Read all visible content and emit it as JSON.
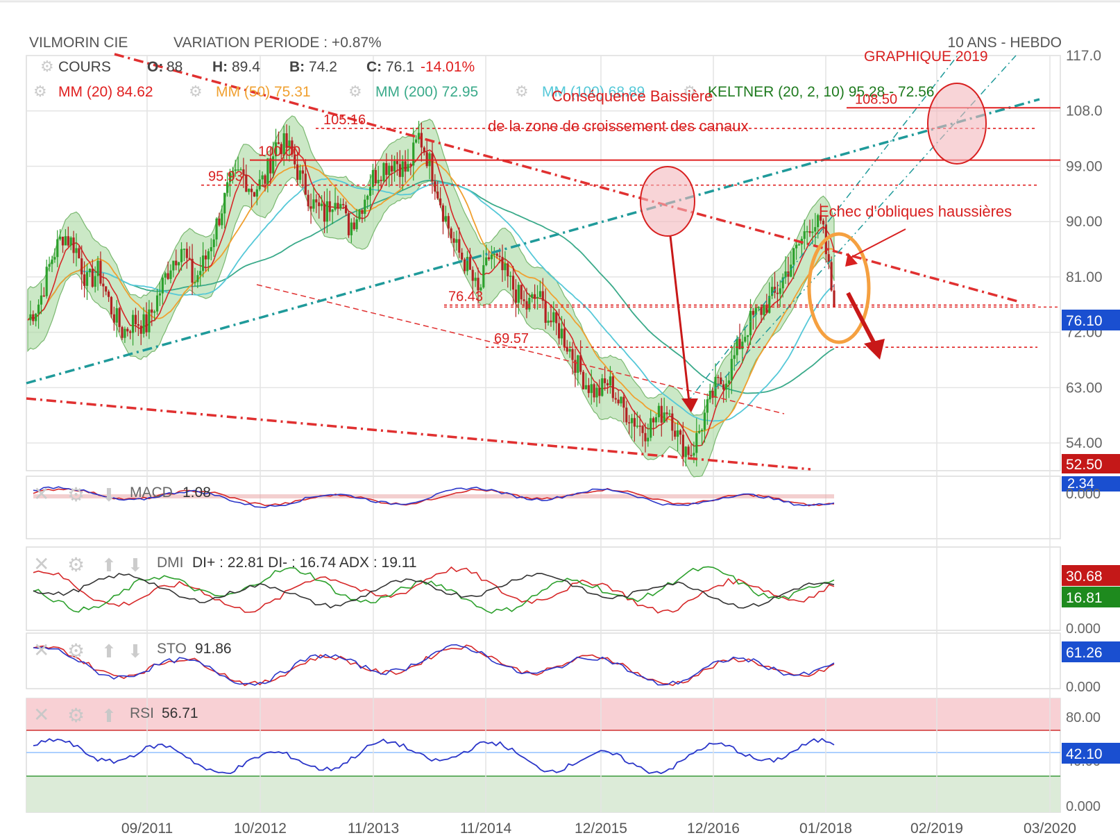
{
  "header": {
    "name": "VILMORIN CIE",
    "variation": "VARIATION PERIODE : +0.87%",
    "period": "10 ANS - HEBDO"
  },
  "legend": {
    "cours_label": "COURS",
    "o_label": "O:",
    "o_value": "88",
    "h_label": "H:",
    "h_value": "89.4",
    "b_label": "B:",
    "b_value": "74.2",
    "c_label": "C:",
    "c_value": "76.1",
    "change": "-14.01%",
    "mm20": "MM (20)  84.62",
    "mm50": "MM (50)  75.31",
    "mm200": "MM (200)  72.95",
    "mm100": "MM (100)  68.89",
    "keltner": "KELTNER (20, 2, 10)  95.28 - 72.56"
  },
  "annotations": {
    "graphique": "GRAPHIQUE 2019",
    "consequence": "Conséquence Baissière",
    "zone": "de la zone de croissement des canaux",
    "echec": "Echec d'obliques haussières"
  },
  "colors": {
    "up": "#2ca02c",
    "down": "#b22222",
    "mm20": "#d62728",
    "mm50": "#f0a030",
    "mm200": "#3aaa8a",
    "mm100": "#55c8d8",
    "keltner_fill": "#a8d8a0",
    "trend_red": "#e03030",
    "trend_teal": "#1f9a9a",
    "orange": "#f5a040",
    "rsi_line": "#2a35c8",
    "last_badge": "#1a4fd0"
  },
  "chart_data": [
    {
      "type": "candlestick",
      "title": "VILMORIN CIE",
      "ylim": [
        49.5,
        117.0
      ],
      "y_ticks": [
        "117.0",
        "108.0",
        "99.00",
        "90.00",
        "81.00",
        "72.00",
        "63.00",
        "54.00"
      ],
      "x_ticks": [
        "09/2011",
        "10/2012",
        "11/2013",
        "11/2014",
        "12/2015",
        "12/2016",
        "01/2018",
        "02/2019",
        "03/2020"
      ],
      "last_price_badge": "76.10",
      "low_badge": "52.50",
      "levels": [
        {
          "value": 108.5,
          "label": "108.50"
        },
        {
          "value": 105.16,
          "label": "105.16"
        },
        {
          "value": 100.0,
          "label": "100.00"
        },
        {
          "value": 95.93,
          "label": "95.93"
        },
        {
          "value": 76.43,
          "label": "76.43"
        },
        {
          "value": 69.57,
          "label": "69.57"
        }
      ],
      "series": [
        {
          "name": "COURS (close, approx weekly samples)",
          "values": [
            74,
            77,
            84,
            88,
            86,
            80,
            82,
            76,
            72,
            74,
            73,
            78,
            83,
            86,
            80,
            84,
            90,
            96,
            98,
            95,
            97,
            103,
            102,
            97,
            93,
            91,
            95,
            89,
            92,
            97,
            99,
            100,
            98,
            104,
            99,
            92,
            86,
            83,
            78,
            85,
            82,
            79,
            76,
            78,
            74,
            72,
            68,
            64,
            62,
            64,
            60,
            58,
            56,
            58,
            60,
            54,
            52.5,
            58,
            63,
            65,
            70,
            74,
            76,
            78,
            82,
            86,
            90,
            89,
            76.1
          ]
        },
        {
          "name": "MM (20)",
          "last": 84.62
        },
        {
          "name": "MM (50)",
          "last": 75.31
        },
        {
          "name": "MM (200)",
          "last": 72.95
        },
        {
          "name": "MM (100)",
          "last": 68.89
        },
        {
          "name": "KELTNER (20, 2, 10)",
          "upper": 95.28,
          "lower": 72.56
        }
      ]
    },
    {
      "type": "line",
      "title": "MACD",
      "value_label": "1.08",
      "y_ticks": [
        "2.34",
        "0.000"
      ],
      "series": [
        {
          "name": "MACD",
          "last": 1.08
        }
      ]
    },
    {
      "type": "line",
      "title": "DMI",
      "value_label": "DI+ : 22.81 DI- : 16.74 ADX : 19.11",
      "badges": [
        "30.68",
        "16.81"
      ],
      "y_ticks": [
        "0.000"
      ],
      "series": [
        {
          "name": "DI+",
          "last": 22.81
        },
        {
          "name": "DI-",
          "last": 16.74
        },
        {
          "name": "ADX",
          "last": 19.11
        }
      ]
    },
    {
      "type": "line",
      "title": "STO",
      "value_label": "91.86",
      "badge": "61.26",
      "y_ticks": [
        "0.000"
      ],
      "series": [
        {
          "name": "STO",
          "last": 91.86
        }
      ]
    },
    {
      "type": "line",
      "title": "RSI",
      "value_label": "56.71",
      "badge": "42.10",
      "y_ticks": [
        "80.00",
        "40.00",
        "0.000"
      ],
      "series": [
        {
          "name": "RSI",
          "last": 56.71
        }
      ]
    }
  ]
}
